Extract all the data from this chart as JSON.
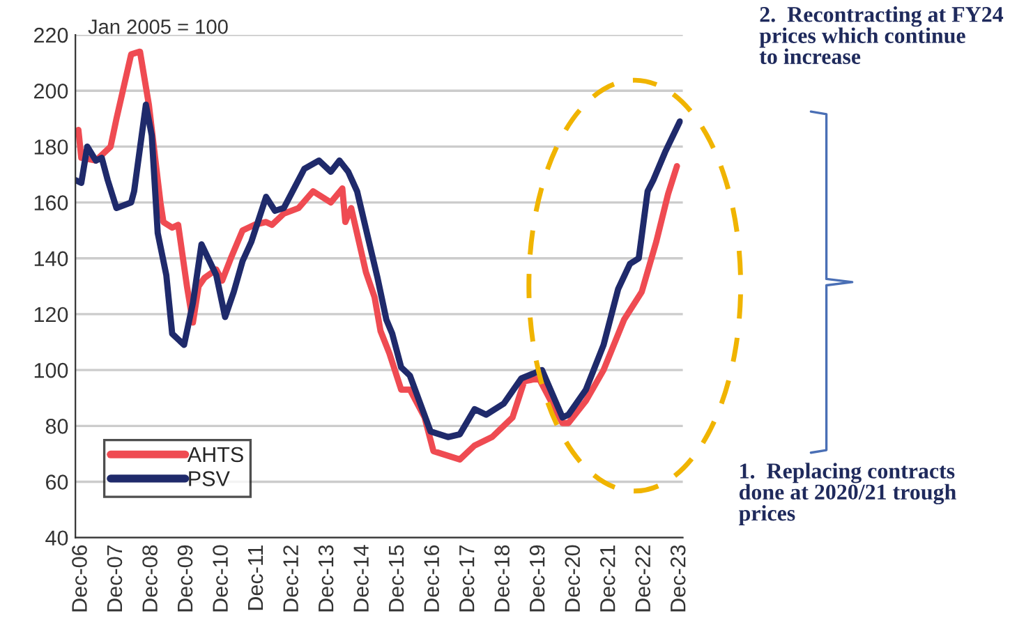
{
  "chart_data": {
    "type": "line",
    "annotations": [
      "Jan 2005 = 100",
      "2.  Recontracting at FY24\nprices which continue\nto increase",
      "1.  Replacing contracts\ndone at 2020/21 trough\nprices"
    ],
    "series": [
      {
        "name": "AHTS",
        "color": "#ef4b52",
        "x": [
          "2006-11",
          "2006-12",
          "2007-05",
          "2007-10",
          "2007-12",
          "2008-05",
          "2008-08",
          "2008-11",
          "2009-03",
          "2009-04",
          "2009-07",
          "2009-09",
          "2009-12",
          "2010-02",
          "2010-04",
          "2010-06",
          "2010-10",
          "2010-12",
          "2011-03",
          "2011-07",
          "2011-11",
          "2012-03",
          "2012-05",
          "2012-09",
          "2013-02",
          "2013-07",
          "2014-01",
          "2014-05",
          "2014-06",
          "2014-08",
          "2015-01",
          "2015-04",
          "2015-06",
          "2015-09",
          "2016-01",
          "2016-04",
          "2016-09",
          "2016-12",
          "2017-03",
          "2017-09",
          "2018-02",
          "2018-08",
          "2019-03",
          "2019-07",
          "2019-12",
          "2020-08",
          "2020-10",
          "2021-04",
          "2021-10",
          "2022-05",
          "2022-11",
          "2023-04",
          "2023-08",
          "2023-11"
        ],
        "values": [
          186,
          176,
          175,
          180,
          190,
          213,
          214,
          195,
          160,
          153,
          151,
          152,
          130,
          117,
          130,
          133,
          136,
          132,
          140,
          150,
          152,
          153,
          152,
          156,
          158,
          164,
          160,
          165,
          153,
          158,
          135,
          126,
          114,
          106,
          93,
          93,
          83,
          71,
          70,
          68,
          73,
          76,
          83,
          96,
          97,
          81,
          81,
          89,
          100,
          118,
          128,
          146,
          163,
          173
        ]
      },
      {
        "name": "PSV",
        "color": "#1f2a6b",
        "x": [
          "2006-10",
          "2006-12",
          "2007-02",
          "2007-05",
          "2007-07",
          "2007-09",
          "2007-12",
          "2008-05",
          "2008-06",
          "2008-10",
          "2008-12",
          "2009-02",
          "2009-05",
          "2009-07",
          "2009-11",
          "2010-02",
          "2010-05",
          "2010-10",
          "2011-01",
          "2011-04",
          "2011-07",
          "2011-10",
          "2012-03",
          "2012-06",
          "2012-09",
          "2013-04",
          "2013-09",
          "2014-01",
          "2014-04",
          "2014-07",
          "2014-10",
          "2015-02",
          "2015-05",
          "2015-08",
          "2015-10",
          "2016-01",
          "2016-04",
          "2016-11",
          "2017-05",
          "2017-09",
          "2018-02",
          "2018-06",
          "2018-12",
          "2019-06",
          "2020-01",
          "2020-08",
          "2020-10",
          "2021-04",
          "2021-10",
          "2022-03",
          "2022-07",
          "2022-10",
          "2023-01",
          "2023-03",
          "2023-07",
          "2023-12"
        ],
        "values": [
          168,
          167,
          180,
          175,
          176,
          168,
          158,
          160,
          164,
          195,
          184,
          149,
          134,
          113,
          109,
          124,
          145,
          134,
          119,
          128,
          139,
          146,
          162,
          157,
          158,
          172,
          175,
          171,
          175,
          171,
          164,
          146,
          133,
          118,
          113,
          101,
          98,
          78,
          76,
          77,
          86,
          84,
          88,
          97,
          100,
          83,
          84,
          93,
          109,
          129,
          138,
          140,
          164,
          168,
          178,
          189
        ]
      }
    ],
    "xlim": [
      "2006-10",
      "2024-01"
    ],
    "xticks": [
      {
        "value": "2006-12",
        "label": "Dec-06"
      },
      {
        "value": "2007-12",
        "label": "Dec-07"
      },
      {
        "value": "2008-12",
        "label": "Dec-08"
      },
      {
        "value": "2009-12",
        "label": "Dec-09"
      },
      {
        "value": "2010-12",
        "label": "Dec-10"
      },
      {
        "value": "2011-12",
        "label": "Dec-11"
      },
      {
        "value": "2012-12",
        "label": "Dec-12"
      },
      {
        "value": "2013-12",
        "label": "Dec-13"
      },
      {
        "value": "2014-12",
        "label": "Dec-14"
      },
      {
        "value": "2015-12",
        "label": "Dec-15"
      },
      {
        "value": "2016-12",
        "label": "Dec-16"
      },
      {
        "value": "2017-12",
        "label": "Dec-17"
      },
      {
        "value": "2018-12",
        "label": "Dec-18"
      },
      {
        "value": "2019-12",
        "label": "Dec-19"
      },
      {
        "value": "2020-12",
        "label": "Dec-20"
      },
      {
        "value": "2021-12",
        "label": "Dec-21"
      },
      {
        "value": "2022-12",
        "label": "Dec-22"
      },
      {
        "value": "2023-12",
        "label": "Dec-23"
      }
    ],
    "ylim": [
      40,
      220
    ],
    "yticks": [
      40,
      60,
      80,
      100,
      120,
      140,
      160,
      180,
      200,
      220
    ],
    "grid": "y",
    "legend": "bottom left",
    "marker": "none",
    "line_style": "solid"
  }
}
